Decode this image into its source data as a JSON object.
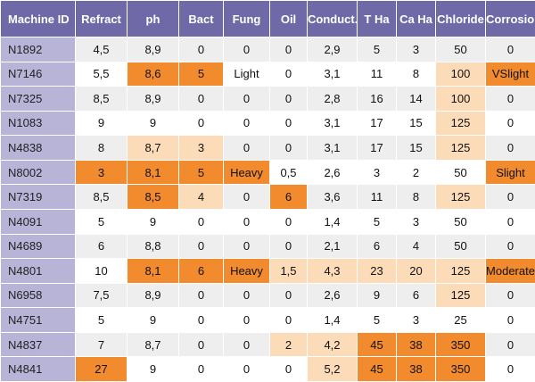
{
  "table": {
    "columns": [
      "Machine ID",
      "Refract",
      "ph",
      "Bact",
      "Fung",
      "Oil",
      "Conduct.",
      "T Ha",
      "Ca Ha",
      "Chloride",
      "Corrosion"
    ],
    "rows": [
      {
        "cells": [
          "N1892",
          "4,5",
          "8,9",
          "0",
          "0",
          "0",
          "2,9",
          "5",
          "3",
          "50",
          "0"
        ],
        "hl": [
          null,
          null,
          null,
          null,
          null,
          null,
          null,
          null,
          null,
          null,
          null
        ]
      },
      {
        "cells": [
          "N7146",
          "5,5",
          "8,6",
          "5",
          "Light",
          "0",
          "3,1",
          "11",
          "8",
          "100",
          "VSlight"
        ],
        "hl": [
          null,
          null,
          "strong",
          "strong",
          null,
          null,
          null,
          null,
          null,
          "light",
          "strong"
        ]
      },
      {
        "cells": [
          "N7325",
          "8,5",
          "8,9",
          "0",
          "0",
          "0",
          "2,8",
          "16",
          "14",
          "100",
          "0"
        ],
        "hl": [
          null,
          null,
          null,
          null,
          null,
          null,
          null,
          null,
          null,
          "light",
          null
        ]
      },
      {
        "cells": [
          "N1083",
          "9",
          "9",
          "0",
          "0",
          "0",
          "3,1",
          "17",
          "15",
          "125",
          "0"
        ],
        "hl": [
          null,
          null,
          null,
          null,
          null,
          null,
          null,
          null,
          null,
          "light",
          null
        ]
      },
      {
        "cells": [
          "N4838",
          "8",
          "8,7",
          "3",
          "0",
          "0",
          "3,1",
          "17",
          "15",
          "125",
          "0"
        ],
        "hl": [
          null,
          null,
          "light",
          "light",
          null,
          null,
          null,
          null,
          null,
          "light",
          null
        ]
      },
      {
        "cells": [
          "N8002",
          "3",
          "8,1",
          "5",
          "Heavy",
          "0,5",
          "2,6",
          "3",
          "2",
          "50",
          "Slight"
        ],
        "hl": [
          null,
          "strong",
          "strong",
          "strong",
          "strong",
          null,
          null,
          null,
          null,
          null,
          "strong"
        ]
      },
      {
        "cells": [
          "N7319",
          "8,5",
          "8,5",
          "4",
          "0",
          "6",
          "3,6",
          "11",
          "8",
          "125",
          "0"
        ],
        "hl": [
          null,
          null,
          "strong",
          "light",
          null,
          "strong",
          null,
          null,
          null,
          "light",
          null
        ]
      },
      {
        "cells": [
          "N4091",
          "5",
          "9",
          "0",
          "0",
          "0",
          "1,4",
          "5",
          "3",
          "50",
          "0"
        ],
        "hl": [
          null,
          null,
          null,
          null,
          null,
          null,
          null,
          null,
          null,
          null,
          null
        ]
      },
      {
        "cells": [
          "N4689",
          "6",
          "8,8",
          "0",
          "0",
          "0",
          "2,1",
          "6",
          "4",
          "50",
          "0"
        ],
        "hl": [
          null,
          null,
          null,
          null,
          null,
          null,
          null,
          null,
          null,
          null,
          null
        ]
      },
      {
        "cells": [
          "N4801",
          "10",
          "8,1",
          "6",
          "Heavy",
          "1,5",
          "4,3",
          "23",
          "20",
          "125",
          "Moderate"
        ],
        "hl": [
          null,
          null,
          "strong",
          "strong",
          "strong",
          "light",
          "light",
          "light",
          "light",
          "light",
          "strong"
        ]
      },
      {
        "cells": [
          "N6958",
          "7,5",
          "8,9",
          "0",
          "0",
          "0",
          "2,6",
          "9",
          "6",
          "125",
          "0"
        ],
        "hl": [
          null,
          null,
          null,
          null,
          null,
          null,
          null,
          null,
          null,
          "light",
          null
        ]
      },
      {
        "cells": [
          "N4751",
          "5",
          "9",
          "0",
          "0",
          "0",
          "1,4",
          "5",
          "3",
          "25",
          "0"
        ],
        "hl": [
          null,
          null,
          null,
          null,
          null,
          null,
          null,
          null,
          null,
          null,
          null
        ]
      },
      {
        "cells": [
          "N4837",
          "7",
          "8,7",
          "0",
          "0",
          "2",
          "4,2",
          "45",
          "38",
          "350",
          "0"
        ],
        "hl": [
          null,
          null,
          null,
          null,
          null,
          "light",
          "light",
          "strong",
          "strong",
          "strong",
          null
        ]
      },
      {
        "cells": [
          "N4841",
          "27",
          "9",
          "0",
          "0",
          "0",
          "5,2",
          "45",
          "38",
          "350",
          "0"
        ],
        "hl": [
          null,
          "strong",
          null,
          null,
          null,
          null,
          "light",
          "strong",
          "strong",
          "strong",
          null
        ]
      }
    ]
  },
  "colors": {
    "header": "#6f6aa7",
    "id_column": "#b7b4d8",
    "highlight_strong": "#f28a2e",
    "highlight_light": "#fcdcb8",
    "row_alt": "#eeeeee"
  }
}
